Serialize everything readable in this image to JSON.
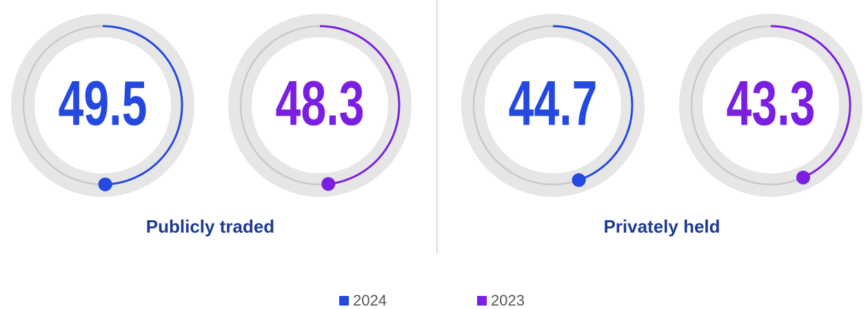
{
  "chart_data": {
    "type": "gauge",
    "categories": [
      "Publicly traded",
      "Privately held"
    ],
    "series": [
      {
        "name": "2024",
        "color": "#2449e0",
        "values": [
          49.5,
          44.7
        ]
      },
      {
        "name": "2023",
        "color": "#7a1fe2",
        "values": [
          48.3,
          43.3
        ]
      }
    ],
    "ylim": [
      0,
      100
    ]
  }
}
